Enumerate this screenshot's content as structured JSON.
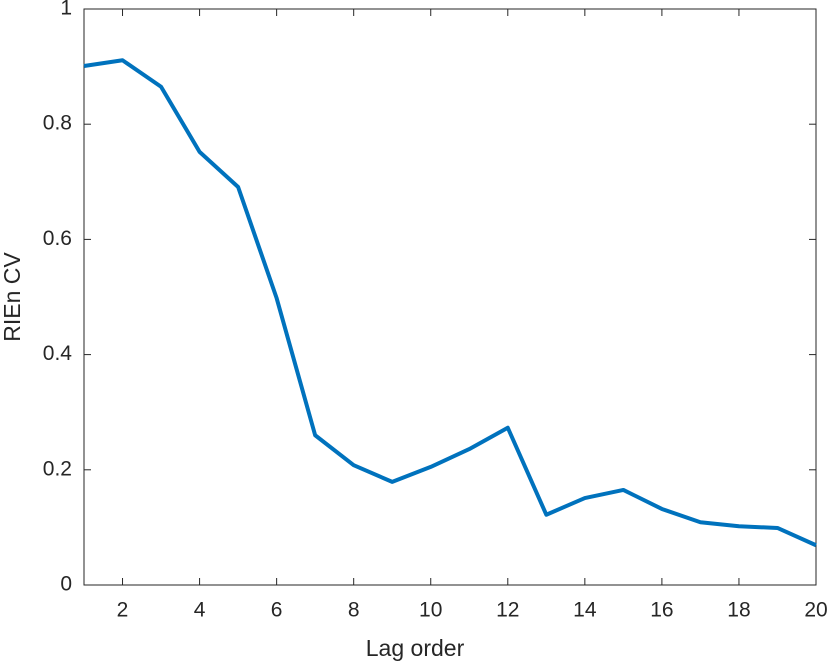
{
  "chart_data": {
    "type": "line",
    "x_label": "Lag order",
    "y_label": "RIEn CV",
    "x": [
      1,
      2,
      3,
      4,
      5,
      6,
      7,
      8,
      9,
      10,
      11,
      12,
      13,
      14,
      15,
      16,
      17,
      18,
      19,
      20
    ],
    "series": [
      {
        "name": "RIEn CV",
        "color": "#0072bd",
        "values": [
          0.901,
          0.911,
          0.865,
          0.752,
          0.691,
          0.498,
          0.26,
          0.208,
          0.179,
          0.205,
          0.236,
          0.273,
          0.122,
          0.151,
          0.165,
          0.132,
          0.109,
          0.102,
          0.099,
          0.069
        ]
      }
    ],
    "xlim": [
      1,
      20
    ],
    "xticks": [
      2,
      4,
      6,
      8,
      10,
      12,
      14,
      16,
      18,
      20
    ],
    "ylim": [
      0,
      1
    ],
    "yticks": [
      0,
      0.2,
      0.4,
      0.6,
      0.8,
      1
    ],
    "grid": false
  }
}
